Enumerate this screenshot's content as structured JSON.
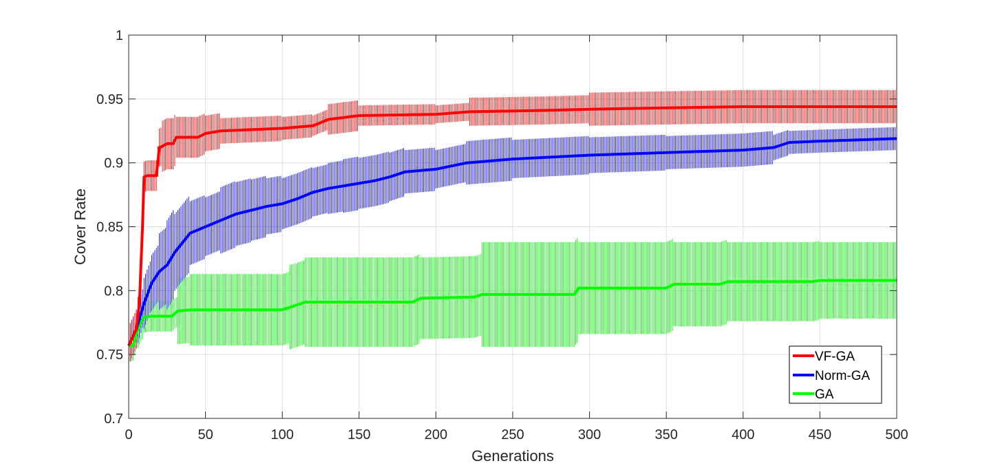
{
  "chart_data": {
    "type": "line",
    "title": "",
    "xlabel": "Generations",
    "ylabel": "Cover Rate",
    "xlim": [
      0,
      500
    ],
    "ylim": [
      0.7,
      1.0
    ],
    "xticks": [
      "0",
      "50",
      "100",
      "150",
      "200",
      "250",
      "300",
      "350",
      "400",
      "450",
      "500"
    ],
    "yticks": [
      "0.7",
      "0.75",
      "0.8",
      "0.85",
      "0.9",
      "0.95",
      "1"
    ],
    "grid": true,
    "legend_position": "bottom-right",
    "error_bars": true,
    "series": [
      {
        "name": "VF-GA",
        "color": "#ff0000",
        "x": [
          0,
          5,
          7,
          9,
          10,
          12,
          18,
          20,
          22,
          25,
          29,
          31,
          45,
          50,
          60,
          80,
          100,
          120,
          130,
          150,
          200,
          222,
          270,
          300,
          350,
          400,
          450,
          500
        ],
        "y": [
          0.757,
          0.77,
          0.79,
          0.85,
          0.889,
          0.89,
          0.89,
          0.912,
          0.913,
          0.915,
          0.915,
          0.92,
          0.92,
          0.923,
          0.925,
          0.926,
          0.927,
          0.929,
          0.934,
          0.937,
          0.938,
          0.94,
          0.941,
          0.942,
          0.943,
          0.944,
          0.944,
          0.944
        ],
        "err": [
          0.015,
          0.015,
          0.015,
          0.02,
          0.012,
          0.012,
          0.012,
          0.015,
          0.02,
          0.02,
          0.02,
          0.016,
          0.016,
          0.014,
          0.01,
          0.01,
          0.009,
          0.008,
          0.012,
          0.008,
          0.007,
          0.011,
          0.011,
          0.013,
          0.013,
          0.013,
          0.013,
          0.013
        ]
      },
      {
        "name": "Norm-GA",
        "color": "#0000ff",
        "x": [
          0,
          5,
          10,
          15,
          20,
          25,
          30,
          40,
          50,
          60,
          70,
          80,
          90,
          100,
          110,
          120,
          130,
          140,
          150,
          160,
          170,
          180,
          200,
          220,
          250,
          300,
          350,
          400,
          420,
          430,
          450,
          500
        ],
        "y": [
          0.757,
          0.77,
          0.79,
          0.806,
          0.815,
          0.82,
          0.83,
          0.845,
          0.85,
          0.855,
          0.86,
          0.863,
          0.866,
          0.868,
          0.872,
          0.877,
          0.88,
          0.882,
          0.884,
          0.886,
          0.889,
          0.893,
          0.895,
          0.9,
          0.903,
          0.906,
          0.908,
          0.91,
          0.912,
          0.916,
          0.917,
          0.919
        ],
        "err": [
          0.015,
          0.015,
          0.02,
          0.022,
          0.03,
          0.035,
          0.03,
          0.025,
          0.023,
          0.026,
          0.025,
          0.024,
          0.022,
          0.02,
          0.02,
          0.019,
          0.02,
          0.021,
          0.02,
          0.02,
          0.019,
          0.017,
          0.015,
          0.017,
          0.015,
          0.014,
          0.013,
          0.013,
          0.01,
          0.009,
          0.009,
          0.009
        ]
      },
      {
        "name": "GA",
        "color": "#00ff00",
        "x": [
          0,
          3,
          6,
          8,
          10,
          15,
          28,
          32,
          40,
          60,
          100,
          105,
          115,
          150,
          185,
          190,
          225,
          230,
          260,
          290,
          293,
          300,
          350,
          355,
          385,
          390,
          445,
          450,
          500
        ],
        "y": [
          0.757,
          0.757,
          0.77,
          0.775,
          0.779,
          0.78,
          0.78,
          0.784,
          0.785,
          0.785,
          0.785,
          0.787,
          0.791,
          0.791,
          0.791,
          0.794,
          0.795,
          0.797,
          0.797,
          0.797,
          0.802,
          0.802,
          0.802,
          0.805,
          0.805,
          0.807,
          0.807,
          0.808,
          0.808
        ],
        "err": [
          0.012,
          0.012,
          0.015,
          0.015,
          0.012,
          0.012,
          0.012,
          0.026,
          0.028,
          0.028,
          0.028,
          0.033,
          0.035,
          0.035,
          0.035,
          0.032,
          0.032,
          0.041,
          0.041,
          0.041,
          0.036,
          0.036,
          0.036,
          0.033,
          0.033,
          0.031,
          0.031,
          0.03,
          0.03
        ]
      }
    ]
  }
}
